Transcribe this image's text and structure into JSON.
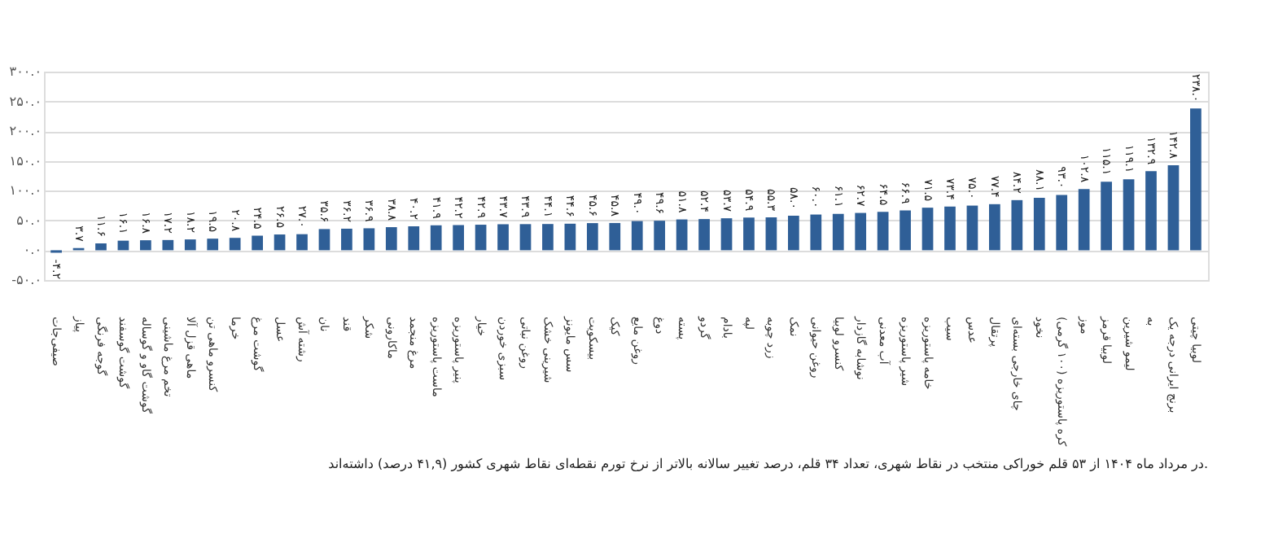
{
  "chart_data": {
    "type": "bar",
    "categories": [
      "صیفی‌جات",
      "پیاز",
      "گوجه فرنگی",
      "گوشت گوسفند",
      "گوشت گاو و گوساله",
      "تخم مرغ ماشینی",
      "ماهی قزل آلا",
      "کنسرو ماهی تن",
      "خرما",
      "گوشت مرغ",
      "عسل",
      "رشته آش",
      "نان",
      "قند",
      "شکر",
      "ماکارونی",
      "مرغ منجمد",
      "ماست پاستوریزه",
      "پنیر پاستوریزه",
      "خیار",
      "سبزی خوردن",
      "روغن نباتی",
      "شیرینی خشک",
      "سس مایونز",
      "بیسکویت",
      "کیک",
      "روغن مایع",
      "دوغ",
      "پسته",
      "گردو",
      "بادام",
      "لپه",
      "زرد چوبه",
      "نمک",
      "روغن حیوانی",
      "کنسرو لوبیا",
      "نوشابه گازدار",
      "آب معدنی",
      "شیر پاستوریزه",
      "خامه پاستوریزه",
      "سیب",
      "عدس",
      "پرتقال",
      "چای خارجی بسته‌ای",
      "نخود",
      "کره پاستوریزه (۱۰۰ گرمی)",
      "موز",
      "لوبیا قرمز",
      "لیمو شیرین",
      "به",
      "برنج ایرانی درجه یک",
      "لوبیا چیتی"
    ],
    "values": [
      -4.2,
      3.7,
      11.6,
      16.1,
      16.8,
      17.2,
      18.2,
      19.5,
      20.8,
      24.5,
      26.5,
      27.0,
      35.6,
      36.2,
      36.9,
      38.8,
      40.2,
      41.9,
      42.2,
      42.9,
      43.7,
      43.9,
      44.1,
      44.6,
      45.6,
      45.8,
      49.0,
      49.6,
      51.8,
      52.4,
      53.7,
      54.9,
      55.3,
      58.0,
      60.0,
      61.1,
      62.7,
      64.5,
      66.9,
      71.5,
      73.4,
      75.0,
      77.4,
      84.2,
      88.1,
      93.0,
      102.8,
      115.1,
      119.1,
      132.9,
      142.8,
      238.0
    ],
    "value_labels": [
      "-۴.۲",
      "۳.۷",
      "۱۱.۶",
      "۱۶.۱",
      "۱۶.۸",
      "۱۷.۲",
      "۱۸.۲",
      "۱۹.۵",
      "۲۰.۸",
      "۲۴.۵",
      "۲۶.۵",
      "۲۷.۰",
      "۳۵.۶",
      "۳۶.۲",
      "۳۶.۹",
      "۳۸.۸",
      "۴۰.۲",
      "۴۱.۹",
      "۴۲.۲",
      "۴۲.۹",
      "۴۳.۷",
      "۴۳.۹",
      "۴۴.۱",
      "۴۴.۶",
      "۴۵.۶",
      "۴۵.۸",
      "۴۹.۰",
      "۴۹.۶",
      "۵۱.۸",
      "۵۲.۴",
      "۵۳.۷",
      "۵۴.۹",
      "۵۵.۳",
      "۵۸.۰",
      "۶۰.۰",
      "۶۱.۱",
      "۶۲.۷",
      "۶۴.۵",
      "۶۶.۹",
      "۷۱.۵",
      "۷۳.۴",
      "۷۵.۰",
      "۷۷.۴",
      "۸۴.۲",
      "۸۸.۱",
      "۹۳.۰",
      "۱۰۲.۸",
      "۱۱۵.۱",
      "۱۱۹.۱",
      "۱۳۲.۹",
      "۱۴۲.۸",
      "۲۳۸.۰"
    ],
    "color": "#2f5f97",
    "ylim": [
      -50,
      300
    ],
    "yticks": [
      {
        "value": -50,
        "label": "-۵۰.۰"
      },
      {
        "value": 0,
        "label": "۰.۰"
      },
      {
        "value": 50,
        "label": "۵۰.۰"
      },
      {
        "value": 100,
        "label": "۱۰۰.۰"
      },
      {
        "value": 150,
        "label": "۱۵۰.۰"
      },
      {
        "value": 200,
        "label": "۲۰۰.۰"
      },
      {
        "value": 250,
        "label": "۲۵۰.۰"
      },
      {
        "value": 300,
        "label": "۳۰۰.۰"
      }
    ],
    "grid": "y",
    "annotations": [
      "در مرداد ماه ۱۴۰۴ از ۵۳ قلم خوراکی منتخب در نقاط شهری، تعداد ۳۴ قلم، درصد تغییر سالانه بالاتر از نرخ تورم نقطه‌ای نقاط شهری کشور (۴۱,۹ درصد) داشته‌اند."
    ]
  }
}
